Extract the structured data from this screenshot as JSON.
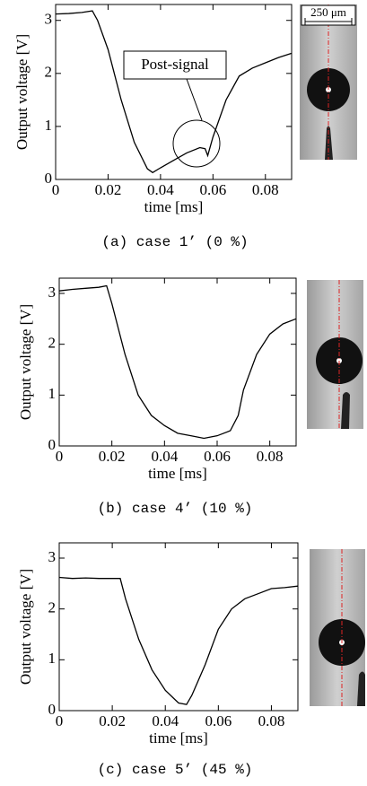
{
  "scale_bar": "250 μm",
  "chart_data": [
    {
      "type": "line",
      "caption": "(a) case 1’ (0 %)",
      "x_label": "time [ms]",
      "y_label": "Output voltage [V]",
      "annotation": "Post-signal",
      "xlim": [
        0,
        0.09
      ],
      "ylim": [
        0,
        3.3
      ],
      "xticks": [
        0,
        0.02,
        0.04,
        0.06,
        0.08
      ],
      "yticks": [
        0,
        1,
        2,
        3
      ],
      "series": [
        {
          "color": "#000000",
          "x": [
            0,
            0.005,
            0.01,
            0.014,
            0.016,
            0.02,
            0.025,
            0.03,
            0.035,
            0.037,
            0.04,
            0.045,
            0.05,
            0.055,
            0.057,
            0.058,
            0.06,
            0.065,
            0.07,
            0.075,
            0.08,
            0.085,
            0.09
          ],
          "values": [
            3.12,
            3.13,
            3.15,
            3.18,
            3.0,
            2.45,
            1.5,
            0.7,
            0.2,
            0.13,
            0.22,
            0.36,
            0.5,
            0.6,
            0.58,
            0.45,
            0.8,
            1.5,
            1.95,
            2.1,
            2.2,
            2.3,
            2.38
          ]
        }
      ]
    },
    {
      "type": "line",
      "caption": "(b) case 4’ (10 %)",
      "x_label": "time [ms]",
      "y_label": "Output voltage [V]",
      "xlim": [
        0,
        0.09
      ],
      "ylim": [
        0,
        3.3
      ],
      "xticks": [
        0,
        0.02,
        0.04,
        0.06,
        0.08
      ],
      "yticks": [
        0,
        1,
        2,
        3
      ],
      "series": [
        {
          "color": "#000000",
          "x": [
            0,
            0.005,
            0.01,
            0.015,
            0.018,
            0.02,
            0.025,
            0.03,
            0.035,
            0.04,
            0.045,
            0.05,
            0.055,
            0.06,
            0.065,
            0.068,
            0.07,
            0.075,
            0.08,
            0.085,
            0.09
          ],
          "values": [
            3.05,
            3.08,
            3.1,
            3.12,
            3.15,
            2.8,
            1.8,
            1.0,
            0.6,
            0.4,
            0.25,
            0.2,
            0.15,
            0.2,
            0.3,
            0.6,
            1.1,
            1.8,
            2.2,
            2.4,
            2.5
          ]
        }
      ]
    },
    {
      "type": "line",
      "caption": "(c) case 5’ (45 %)",
      "x_label": "time [ms]",
      "y_label": "Output voltage [V]",
      "xlim": [
        0,
        0.09
      ],
      "ylim": [
        0,
        3.3
      ],
      "xticks": [
        0,
        0.02,
        0.04,
        0.06,
        0.08
      ],
      "yticks": [
        0,
        1,
        2,
        3
      ],
      "series": [
        {
          "color": "#000000",
          "x": [
            0,
            0.005,
            0.01,
            0.015,
            0.02,
            0.023,
            0.025,
            0.03,
            0.035,
            0.04,
            0.045,
            0.048,
            0.05,
            0.055,
            0.06,
            0.065,
            0.07,
            0.075,
            0.08,
            0.085,
            0.09
          ],
          "values": [
            2.62,
            2.6,
            2.61,
            2.6,
            2.6,
            2.6,
            2.2,
            1.4,
            0.8,
            0.4,
            0.15,
            0.12,
            0.3,
            0.9,
            1.6,
            2.0,
            2.2,
            2.3,
            2.4,
            2.42,
            2.45
          ]
        }
      ]
    }
  ]
}
